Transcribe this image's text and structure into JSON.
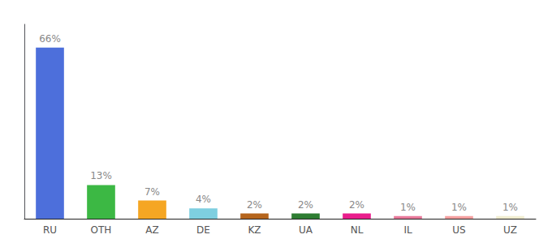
{
  "chart_data": {
    "type": "bar",
    "categories": [
      "RU",
      "OTH",
      "AZ",
      "DE",
      "KZ",
      "UA",
      "NL",
      "IL",
      "US",
      "UZ"
    ],
    "values": [
      66,
      13,
      7,
      4,
      2,
      2,
      2,
      1,
      1,
      1
    ],
    "value_labels": [
      "66%",
      "13%",
      "7%",
      "4%",
      "2%",
      "2%",
      "2%",
      "1%",
      "1%",
      "1%"
    ],
    "colors": [
      "#4d6fdb",
      "#3cb844",
      "#f5a623",
      "#7ecfe0",
      "#b5651d",
      "#2e7d32",
      "#e91e8c",
      "#e8799a",
      "#f4a0a0",
      "#f0edd0"
    ],
    "ylim": [
      0,
      75
    ],
    "data_labels": true,
    "tick_labels": "x",
    "grid": false
  }
}
